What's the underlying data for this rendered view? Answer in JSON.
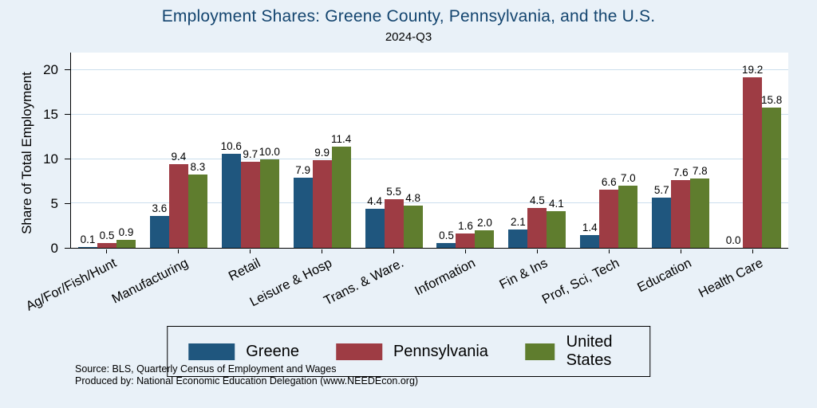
{
  "title": "Employment Shares: Greene County, Pennsylvania, and the U.S.",
  "subtitle": "2024-Q3",
  "source": {
    "line1": "Source: BLS, Quarterly Census of Employment and Wages",
    "line2": "Produced by: National Economic Education Delegation (www.NEEDEcon.org)"
  },
  "colors": {
    "figure_background": "#e9f1f8",
    "plot_background": "#ffffff",
    "gridline": "#cbdeed",
    "title_text": "#14456f"
  },
  "chart_data": {
    "type": "bar",
    "title": "Employment Shares: Greene County, Pennsylvania, and the U.S.",
    "subtitle": "2024-Q3",
    "ylabel": "Share of Total Employment",
    "xlabel": "",
    "categories": [
      "Ag/For/Fish/Hunt",
      "Manufacturing",
      "Retail",
      "Leisure & Hosp",
      "Trans. & Ware.",
      "Information",
      "Fin & Ins",
      "Prof, Sci, Tech",
      "Education",
      "Health Care"
    ],
    "series": [
      {
        "name": "Greene",
        "color": "#1f567e",
        "values": [
          0.1,
          3.6,
          10.6,
          7.9,
          4.4,
          0.5,
          2.1,
          1.4,
          5.7,
          0.0
        ]
      },
      {
        "name": "Pennsylvania",
        "color": "#9e3c44",
        "values": [
          0.5,
          9.4,
          9.7,
          9.9,
          5.5,
          1.6,
          4.5,
          6.6,
          7.6,
          19.2
        ]
      },
      {
        "name": "United States",
        "color": "#5f7d2e",
        "values": [
          0.9,
          8.3,
          10.0,
          11.4,
          4.8,
          2.0,
          4.1,
          7.0,
          7.8,
          15.8
        ]
      }
    ],
    "yticks": [
      0,
      5,
      10,
      15,
      20
    ],
    "ylim": [
      0,
      22
    ],
    "grid": true,
    "value_labels": true,
    "legend_position": "bottom"
  }
}
